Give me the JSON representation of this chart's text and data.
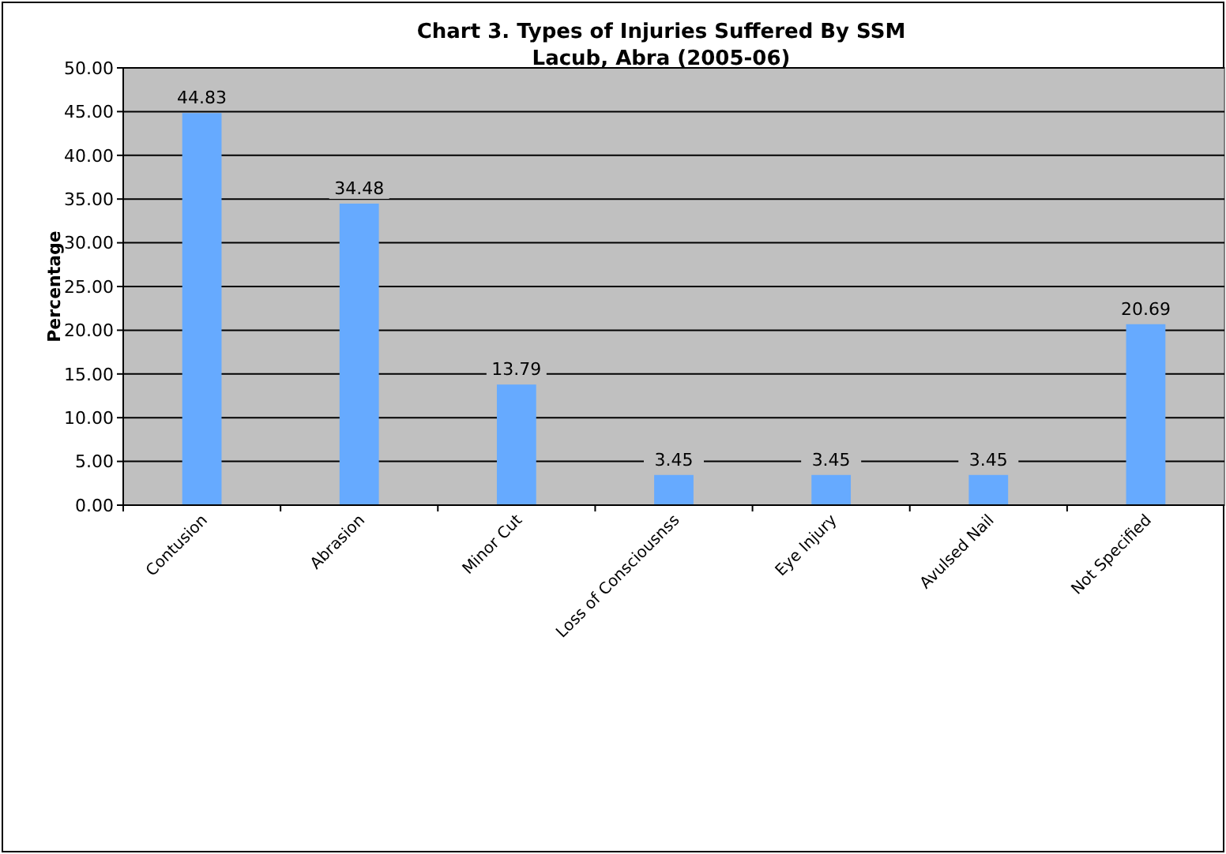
{
  "chart_data": {
    "type": "bar",
    "title": "Chart 3. Types of Injuries Suffered By SSM\nLacub, Abra (2005-06)",
    "ylabel": "Percentage",
    "categories": [
      "Contusion",
      "Abrasion",
      "Minor Cut",
      "Loss of Consciousnss",
      "Eye Injury",
      "Avulsed Nail",
      "Not Specified"
    ],
    "values": [
      44.83,
      34.48,
      13.79,
      3.45,
      3.45,
      3.45,
      20.69
    ],
    "color": "#66aaff",
    "ylim": [
      0,
      50
    ],
    "yticks": [
      {
        "value": 0,
        "label": "0.00"
      },
      {
        "value": 5,
        "label": "5.00"
      },
      {
        "value": 10,
        "label": "10.00"
      },
      {
        "value": 15,
        "label": "15.00"
      },
      {
        "value": 20,
        "label": "20.00"
      },
      {
        "value": 25,
        "label": "25.00"
      },
      {
        "value": 30,
        "label": "30.00"
      },
      {
        "value": 35,
        "label": "35.00"
      },
      {
        "value": 40,
        "label": "40.00"
      },
      {
        "value": 45,
        "label": "45.00"
      },
      {
        "value": 50,
        "label": "50.00"
      }
    ],
    "grid": "y",
    "data_labels": true
  }
}
